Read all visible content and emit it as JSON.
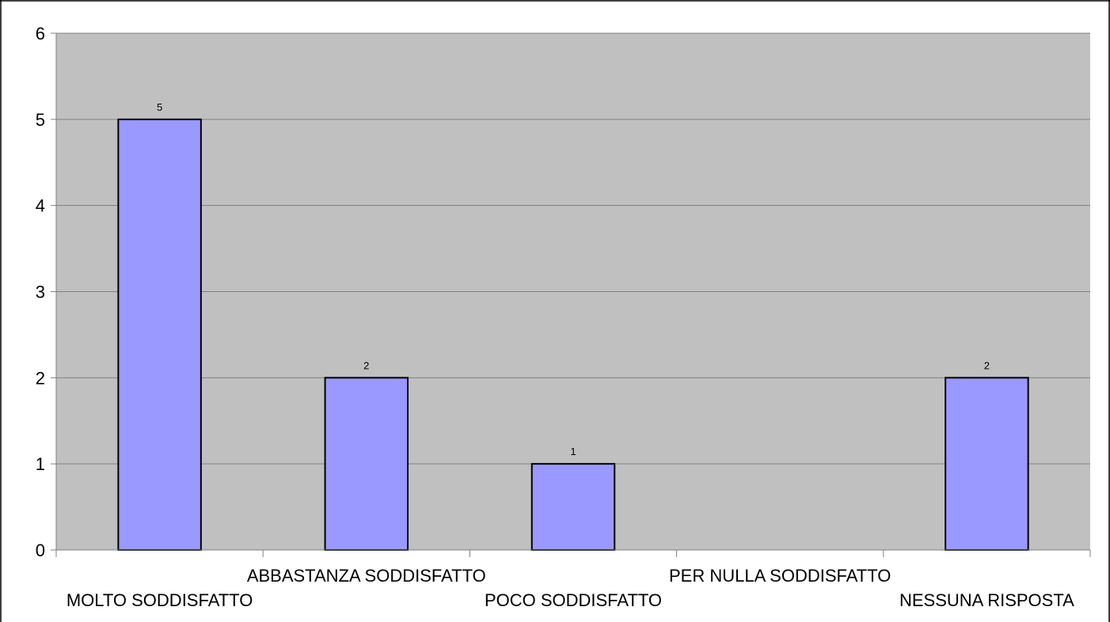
{
  "chart_data": {
    "type": "bar",
    "categories": [
      "MOLTO SODDISFATTO",
      "ABBASTANZA SODDISFATTO",
      "POCO SODDISFATTO",
      "PER NULLA SODDISFATTO",
      "NESSUNA RISPOSTA"
    ],
    "values": [
      5,
      2,
      1,
      0,
      2
    ],
    "data_labels": [
      "5",
      "2",
      "1",
      "",
      "2"
    ],
    "title": "",
    "xlabel": "",
    "ylabel": "",
    "ylim": [
      0,
      6
    ],
    "yticks": [
      "0",
      "1",
      "2",
      "3",
      "4",
      "5",
      "6"
    ],
    "grid": true,
    "legend": "none",
    "colors": {
      "bar": "#9999ff",
      "plot_background": "#c0c0c0",
      "gridline": "#808080",
      "outline": "#000000"
    }
  }
}
